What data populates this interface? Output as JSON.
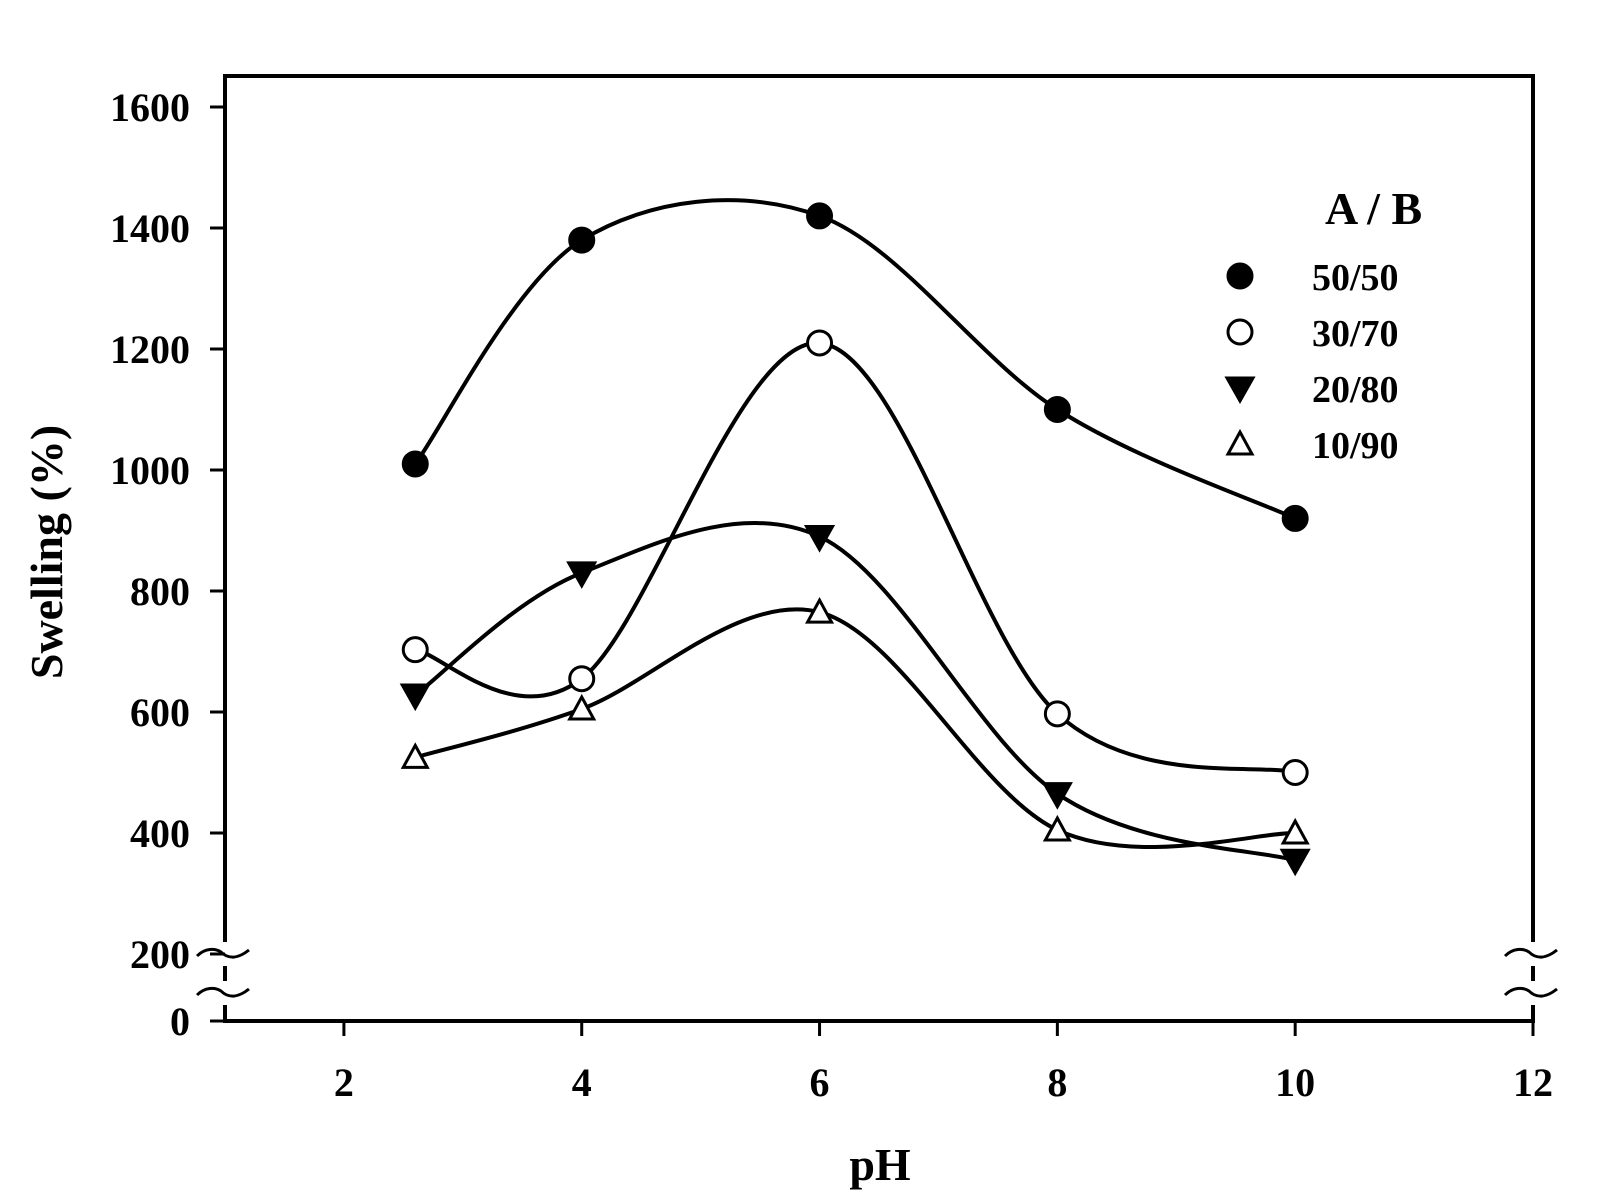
{
  "chart_data": {
    "type": "line",
    "title": "",
    "xlabel": "pH",
    "ylabel": "Swelling (%)",
    "xlim": [
      1,
      12
    ],
    "ylim": [
      0,
      1700
    ],
    "x_ticks": [
      2,
      4,
      6,
      8,
      10,
      12
    ],
    "y_ticks": [
      0,
      200,
      400,
      600,
      800,
      1000,
      1200,
      1400,
      1600
    ],
    "axis_break": "between 0 and 200 on the y axis",
    "legend": {
      "title": "A / B",
      "position": "top-right"
    },
    "series": [
      {
        "name": "50/50",
        "marker": "filled-circle",
        "x": [
          2.6,
          4,
          6,
          8,
          10
        ],
        "values": [
          1010,
          1380,
          1420,
          1100,
          920
        ]
      },
      {
        "name": "30/70",
        "marker": "open-circle",
        "x": [
          2.6,
          4,
          6,
          8,
          10
        ],
        "values": [
          703,
          655,
          1210,
          597,
          500
        ]
      },
      {
        "name": "20/80",
        "marker": "filled-triangle-down",
        "x": [
          2.6,
          4,
          6,
          8,
          10
        ],
        "values": [
          628,
          830,
          890,
          465,
          355
        ]
      },
      {
        "name": "10/90",
        "marker": "open-triangle-up",
        "x": [
          2.6,
          4,
          6,
          8,
          10
        ],
        "values": [
          525,
          605,
          765,
          405,
          400
        ]
      }
    ]
  },
  "colors": {
    "line": "#000000",
    "background": "#ffffff"
  }
}
